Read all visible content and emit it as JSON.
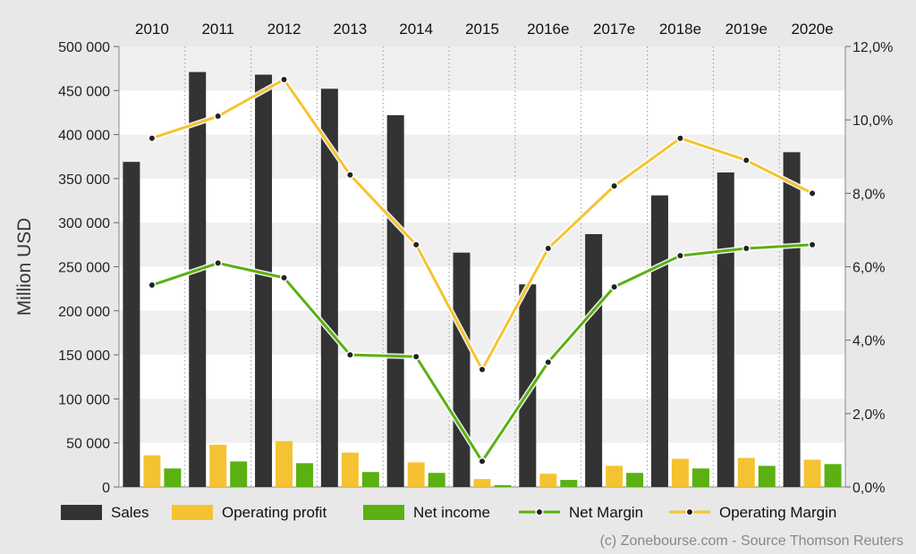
{
  "chart_data": {
    "type": "bar",
    "categories": [
      "2010",
      "2011",
      "2012",
      "2013",
      "2014",
      "2015",
      "2016e",
      "2017e",
      "2018e",
      "2019e",
      "2020e"
    ],
    "series": [
      {
        "name": "Sales",
        "kind": "bar",
        "axis": "left",
        "color": "#333333",
        "values": [
          369000,
          471000,
          468000,
          452000,
          422000,
          266000,
          230000,
          287000,
          331000,
          357000,
          380000
        ]
      },
      {
        "name": "Operating profit",
        "kind": "bar",
        "axis": "left",
        "color": "#f5c331",
        "values": [
          36000,
          48000,
          52000,
          39000,
          28000,
          9000,
          15000,
          24000,
          32000,
          33000,
          31000
        ]
      },
      {
        "name": "Net income",
        "kind": "bar",
        "axis": "left",
        "color": "#5bb012",
        "values": [
          21000,
          29000,
          27000,
          17000,
          16000,
          2000,
          8000,
          16000,
          21000,
          24000,
          26000
        ]
      },
      {
        "name": "Net Margin",
        "kind": "line",
        "axis": "right",
        "color": "#5bb012",
        "values": [
          5.5,
          6.1,
          5.7,
          3.6,
          3.55,
          0.7,
          3.4,
          5.45,
          6.3,
          6.5,
          6.6
        ]
      },
      {
        "name": "Operating Margin",
        "kind": "line",
        "axis": "right",
        "color": "#f5c331",
        "values": [
          9.5,
          10.1,
          11.1,
          8.5,
          6.6,
          3.2,
          6.5,
          8.2,
          9.5,
          8.9,
          8.0
        ]
      }
    ],
    "ylabel": "Million USD",
    "ylim": [
      0,
      500000
    ],
    "y_ticks": [
      "0",
      "50 000",
      "100 000",
      "150 000",
      "200 000",
      "250 000",
      "300 000",
      "350 000",
      "400 000",
      "450 000",
      "500 000"
    ],
    "y2lim": [
      0,
      12
    ],
    "y2_ticks": [
      "0,0%",
      "2,0%",
      "4,0%",
      "6,0%",
      "8,0%",
      "10,0%",
      "12,0%"
    ],
    "grid": true,
    "legend_position": "bottom",
    "x_axis_position": "top"
  },
  "credit": "(c) Zonebourse.com - Source Thomson Reuters"
}
